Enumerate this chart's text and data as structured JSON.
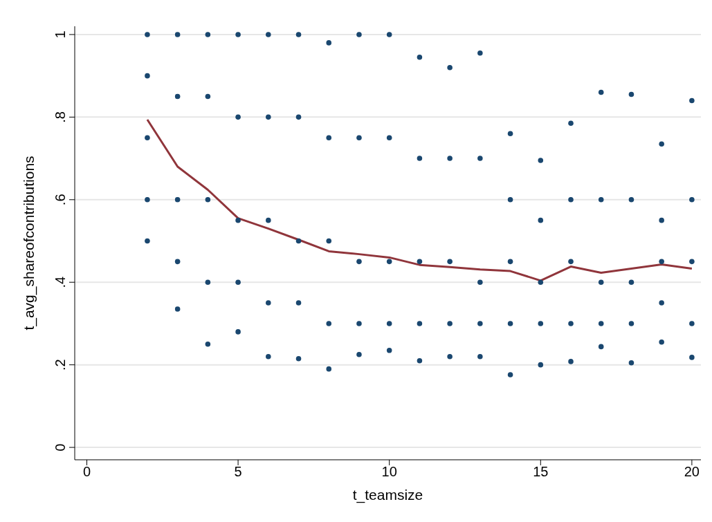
{
  "chart_data": {
    "type": "scatter",
    "xlabel": "t_teamsize",
    "ylabel": "t_avg_shareofcontributions",
    "xlim": [
      -0.4,
      20.3
    ],
    "ylim": [
      -0.03,
      1.02
    ],
    "xticks": [
      0,
      5,
      10,
      15,
      20
    ],
    "yticks": [
      0,
      {
        "value": 0.2,
        "label": ".2"
      },
      {
        "value": 0.4,
        "label": ".4"
      },
      {
        "value": 0.6,
        "label": ".6"
      },
      {
        "value": 0.8,
        "label": ".8"
      },
      1
    ],
    "grid": "y",
    "series": [
      {
        "type": "scatter",
        "color": "#1a476f",
        "marker": "circle",
        "x": [
          2,
          2,
          2,
          2,
          2,
          3,
          3,
          3,
          3,
          3,
          4,
          4,
          4,
          4,
          4,
          5,
          5,
          5,
          5,
          5,
          6,
          6,
          6,
          6,
          6,
          7,
          7,
          7,
          7,
          7,
          8,
          8,
          8,
          8,
          8,
          9,
          9,
          9,
          9,
          9,
          10,
          10,
          10,
          10,
          10,
          11,
          11,
          11,
          11,
          11,
          12,
          12,
          12,
          12,
          12,
          13,
          13,
          13,
          13,
          13,
          14,
          14,
          14,
          14,
          14,
          15,
          15,
          15,
          15,
          15,
          16,
          16,
          16,
          16,
          16,
          17,
          17,
          17,
          17,
          17,
          18,
          18,
          18,
          18,
          18,
          19,
          19,
          19,
          19,
          19,
          20,
          20,
          20,
          20,
          20
        ],
        "values": [
          1,
          0.9,
          0.75,
          0.6,
          0.5,
          1,
          0.85,
          0.6,
          0.45,
          0.335,
          1,
          0.85,
          0.6,
          0.4,
          0.25,
          1,
          0.8,
          0.55,
          0.4,
          0.28,
          1,
          0.8,
          0.55,
          0.35,
          0.22,
          1,
          0.8,
          0.5,
          0.35,
          0.215,
          0.98,
          0.75,
          0.5,
          0.3,
          0.19,
          1,
          0.75,
          0.45,
          0.3,
          0.225,
          1,
          0.75,
          0.45,
          0.3,
          0.235,
          0.945,
          0.7,
          0.45,
          0.3,
          0.21,
          0.92,
          0.7,
          0.45,
          0.3,
          0.22,
          0.955,
          0.7,
          0.4,
          0.3,
          0.22,
          0.76,
          0.6,
          0.45,
          0.3,
          0.176,
          0.695,
          0.55,
          0.4,
          0.3,
          0.2,
          0.785,
          0.6,
          0.45,
          0.3,
          0.208,
          0.86,
          0.6,
          0.4,
          0.3,
          0.244,
          0.855,
          0.6,
          0.4,
          0.3,
          0.205,
          0.735,
          0.55,
          0.45,
          0.35,
          0.255,
          0.84,
          0.6,
          0.45,
          0.3,
          0.218
        ]
      },
      {
        "type": "line",
        "color": "#90353b",
        "marker": "none",
        "line_style": "solid",
        "x": [
          2,
          3,
          4,
          5,
          6,
          7,
          8,
          9,
          10,
          11,
          12,
          13,
          14,
          15,
          16,
          17,
          18,
          19,
          20
        ],
        "values": [
          0.794,
          0.68,
          0.624,
          0.555,
          0.53,
          0.503,
          0.475,
          0.468,
          0.46,
          0.442,
          0.437,
          0.431,
          0.427,
          0.404,
          0.438,
          0.423,
          0.433,
          0.443,
          0.433
        ]
      }
    ]
  }
}
